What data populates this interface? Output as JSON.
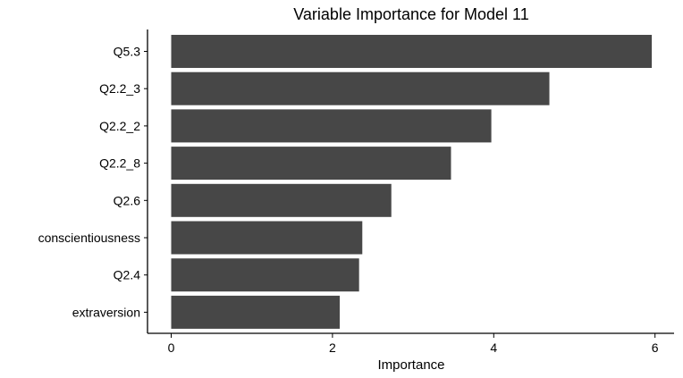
{
  "chart_data": {
    "type": "bar",
    "orientation": "horizontal",
    "title": "Variable Importance for Model 11",
    "xlabel": "Importance",
    "ylabel": "",
    "categories": [
      "Q5.3",
      "Q2.2_3",
      "Q2.2_2",
      "Q2.2_8",
      "Q2.6",
      "conscientiousness",
      "Q2.4",
      "extraversion"
    ],
    "values": [
      5.96,
      4.69,
      3.97,
      3.47,
      2.73,
      2.37,
      2.33,
      2.09
    ],
    "xlim": [
      0,
      6
    ],
    "xticks": [
      "0",
      "2",
      "4",
      "6"
    ],
    "grid": false,
    "legend": "none",
    "bar_color": "#474747"
  }
}
